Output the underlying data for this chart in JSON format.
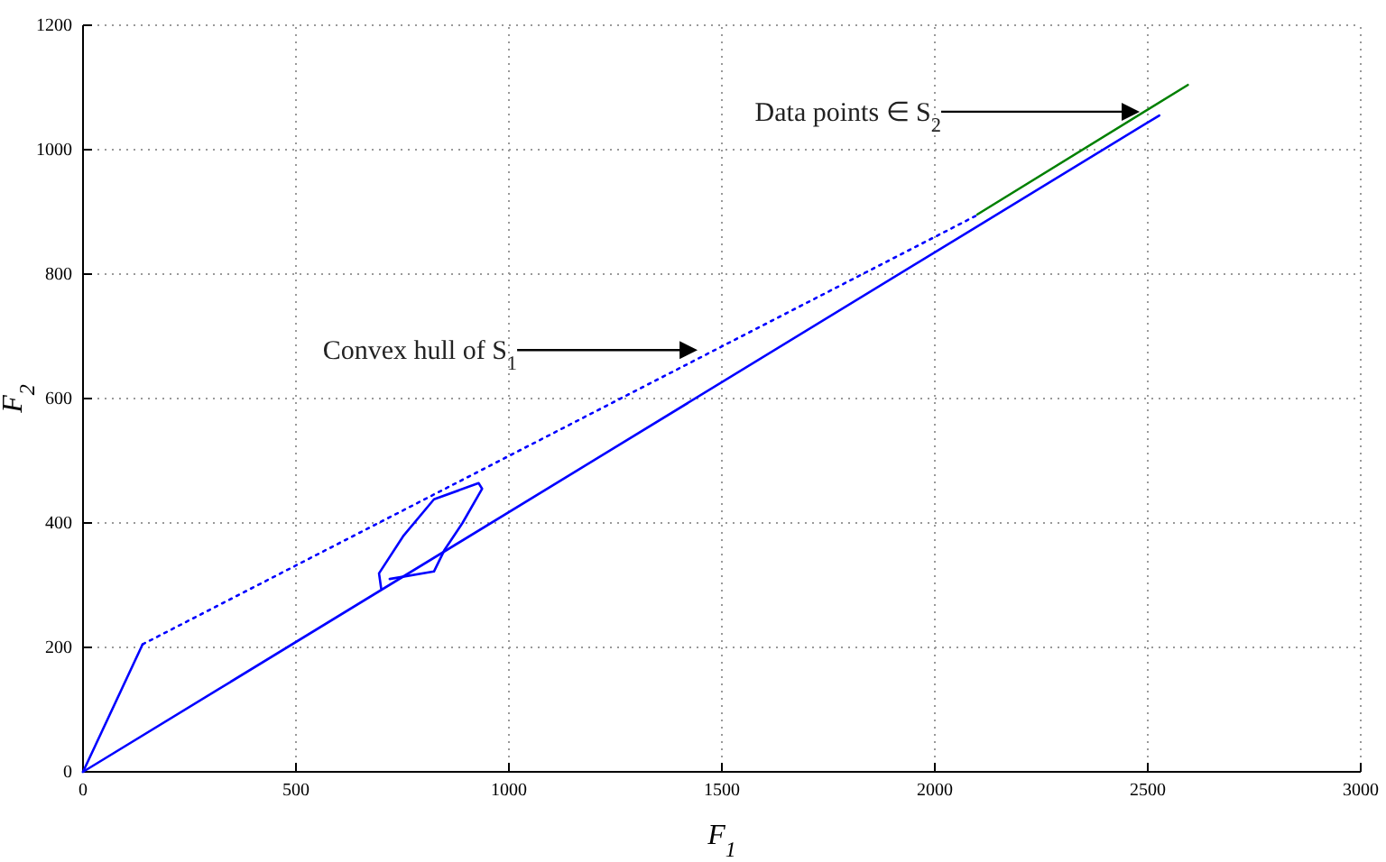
{
  "chart_data": {
    "type": "line",
    "xlabel": "F$_{1}$",
    "ylabel": "F$_{2}$",
    "xlim": [
      0,
      3000
    ],
    "xticks": [
      0,
      500,
      1000,
      1500,
      2000,
      2500,
      3000
    ],
    "ylim": [
      0,
      1200
    ],
    "yticks": [
      0,
      200,
      400,
      600,
      800,
      1000,
      1200
    ],
    "grid": true,
    "line_style": "solid",
    "series": [
      {
        "color": "#0000ff",
        "x": [
          0,
          2527
        ],
        "values": [
          0,
          1055
        ]
      },
      {
        "color": "#0000ff",
        "x": [
          0,
          140
        ],
        "values": [
          0,
          205
        ]
      },
      {
        "color": "#0000ff",
        "line_style": "dotted",
        "x": [
          140,
          2100
        ],
        "values": [
          205,
          895
        ]
      },
      {
        "color": "#0000ff",
        "x": [
          700,
          695,
          753,
          824,
          929,
          937,
          891,
          849,
          824,
          720
        ],
        "values": [
          295,
          319,
          380,
          438,
          464,
          455,
          400,
          357,
          322,
          310
        ]
      },
      {
        "color": "#008000",
        "x": [
          2100,
          2594
        ],
        "values": [
          896,
          1104
        ]
      }
    ],
    "annotations": [
      {
        "text": "Convex hull of S$_{1}$",
        "x": 1443,
        "y": 678
      },
      {
        "text": "Data points ∈ S$_{2}$",
        "x": 2481,
        "y": 1061
      }
    ]
  }
}
